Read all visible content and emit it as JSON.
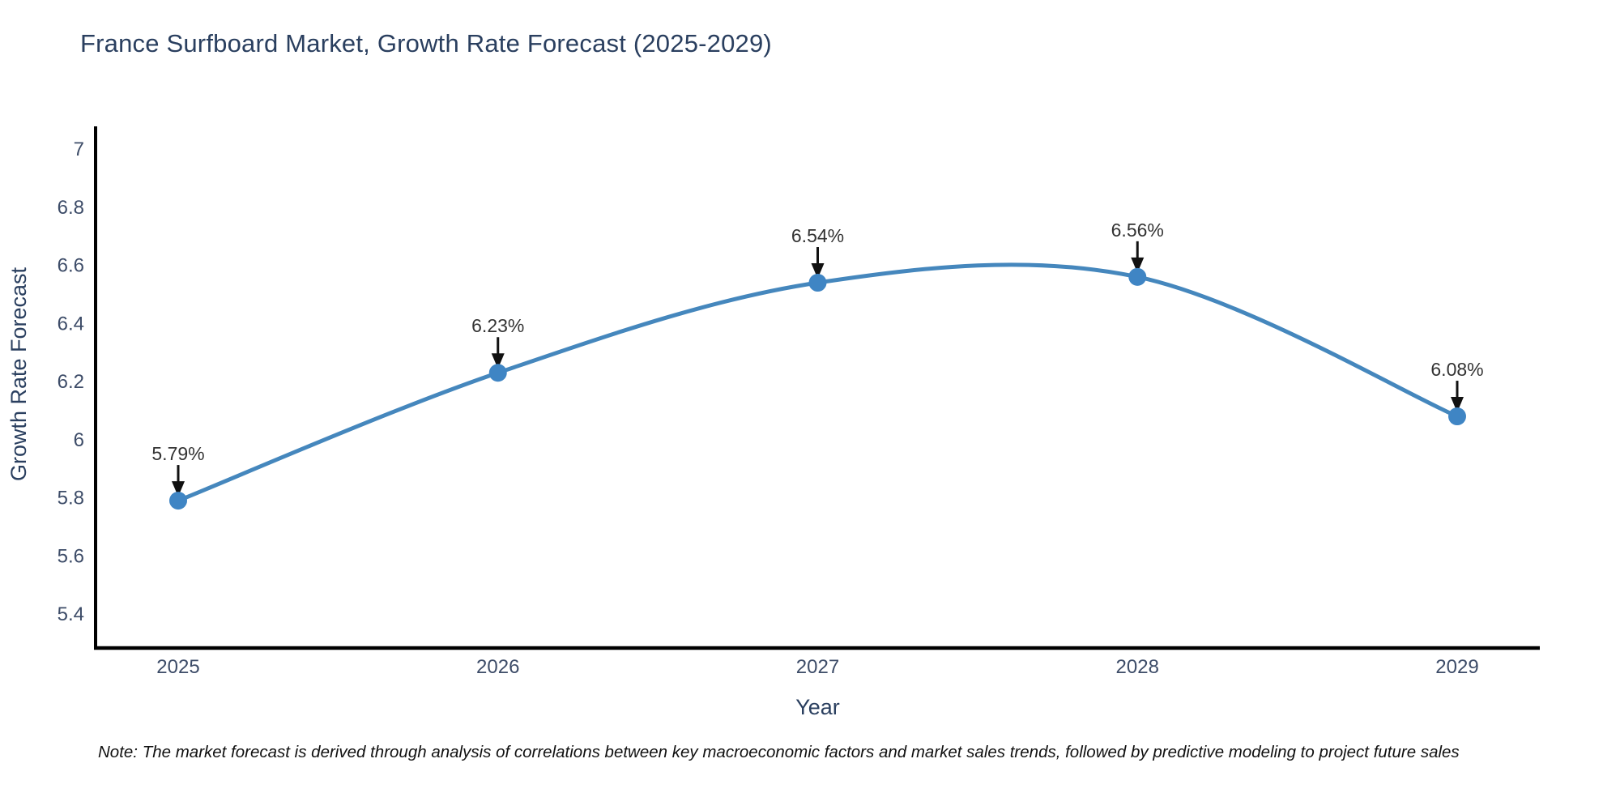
{
  "header": {
    "title": "France Surfboard Market, Growth Rate Forecast (2025-2029)"
  },
  "note": "Note: The market forecast is derived through analysis of correlations between key macroeconomic factors and market sales trends, followed by predictive modeling to project future sales",
  "chart_data": {
    "type": "line",
    "title": "France Surfboard Market, Growth Rate Forecast (2025-2029)",
    "xlabel": "Year",
    "ylabel": "Growth Rate Forecast",
    "categories": [
      "2025",
      "2026",
      "2027",
      "2028",
      "2029"
    ],
    "series": [
      {
        "name": "Growth Rate Forecast",
        "values": [
          5.79,
          6.23,
          6.54,
          6.56,
          6.08
        ],
        "point_labels": [
          "5.79%",
          "6.23%",
          "6.54%",
          "6.56%",
          "6.08%"
        ]
      }
    ],
    "ytick_labels": [
      "7",
      "6.8",
      "6.6",
      "6.4",
      "6.2",
      "6",
      "5.8",
      "5.6",
      "5.4"
    ],
    "ytick_values": [
      7,
      6.8,
      6.6,
      6.4,
      6.2,
      6,
      5.8,
      5.6,
      5.4
    ],
    "ylim": [
      5.28,
      7.07
    ],
    "grid": false,
    "legend_position": "none",
    "curve": "spline",
    "markers": true,
    "annotations_have_arrows": true,
    "colors": {
      "line": "#4587bd",
      "marker": "#3f85c4",
      "axis_line": "#000000",
      "tick_label": "#3d4c68",
      "axis_title": "#2a3f5f",
      "chart_title": "#2a3f5f",
      "annotation_text": "#333333",
      "arrow": "#111111",
      "background": "#ffffff"
    }
  }
}
